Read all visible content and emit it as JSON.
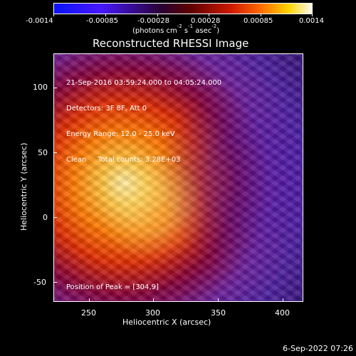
{
  "colorbar": {
    "labels": [
      "-0.0014",
      "-0.00085",
      "-0.00028",
      "0.00028",
      "0.00085",
      "0.0014"
    ],
    "units_prefix": "(photons cm",
    "units_exp1": "-2",
    "units_mid": " s",
    "units_exp2": "-1",
    "units_suffix": " asec",
    "units_exp3": "-2",
    "units_end": ")"
  },
  "plot": {
    "title": "Reconstructed RHESSI Image",
    "x_ticks": [
      "250",
      "300",
      "350",
      "400"
    ],
    "y_ticks": [
      "100",
      "50",
      "0",
      "-50"
    ],
    "x_label": "Heliocentric X (arcsec)",
    "y_label": "Heliocentric Y (arcsec)"
  },
  "info": {
    "line1": "21-Sep-2016 03:59:24.000 to 04:05:24.000",
    "line2": "Detectors: 3F 8F, Att 0",
    "line3": "Energy Range: 12.0 - 25.0 keV",
    "line4": "Clean     Total counts: 3.28E+03",
    "peak": "Position of Peak = [304,9]"
  },
  "footer": {
    "date": "6-Sep-2022 07:26"
  }
}
